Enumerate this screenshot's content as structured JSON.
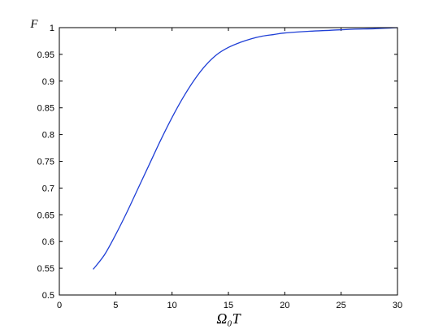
{
  "chart_data": {
    "type": "line",
    "title": "",
    "xlabel": "Ω₀T",
    "ylabel": "F",
    "xlim": [
      0,
      30
    ],
    "ylim": [
      0.5,
      1
    ],
    "grid": false,
    "x_ticks": [
      0,
      5,
      10,
      15,
      20,
      25,
      30
    ],
    "x_tick_labels": [
      "0",
      "5",
      "10",
      "15",
      "20",
      "25",
      "30"
    ],
    "y_ticks": [
      0.5,
      0.55,
      0.6,
      0.65,
      0.7,
      0.75,
      0.8,
      0.85,
      0.9,
      0.95,
      1
    ],
    "y_tick_labels": [
      "0.5",
      "0.55",
      "0.6",
      "0.65",
      "0.7",
      "0.75",
      "0.8",
      "0.85",
      "0.9",
      "0.95",
      "1"
    ],
    "series": [
      {
        "color": "#1f3fd6",
        "x": [
          3,
          4,
          5,
          6,
          7,
          8,
          9,
          10,
          11,
          12,
          13,
          14,
          15,
          16,
          17,
          18,
          19,
          20,
          22,
          24,
          26,
          28,
          30
        ],
        "y": [
          0.548,
          0.575,
          0.613,
          0.655,
          0.7,
          0.745,
          0.79,
          0.832,
          0.87,
          0.903,
          0.93,
          0.95,
          0.963,
          0.972,
          0.979,
          0.984,
          0.987,
          0.99,
          0.993,
          0.995,
          0.997,
          0.998,
          1.0
        ]
      }
    ]
  }
}
